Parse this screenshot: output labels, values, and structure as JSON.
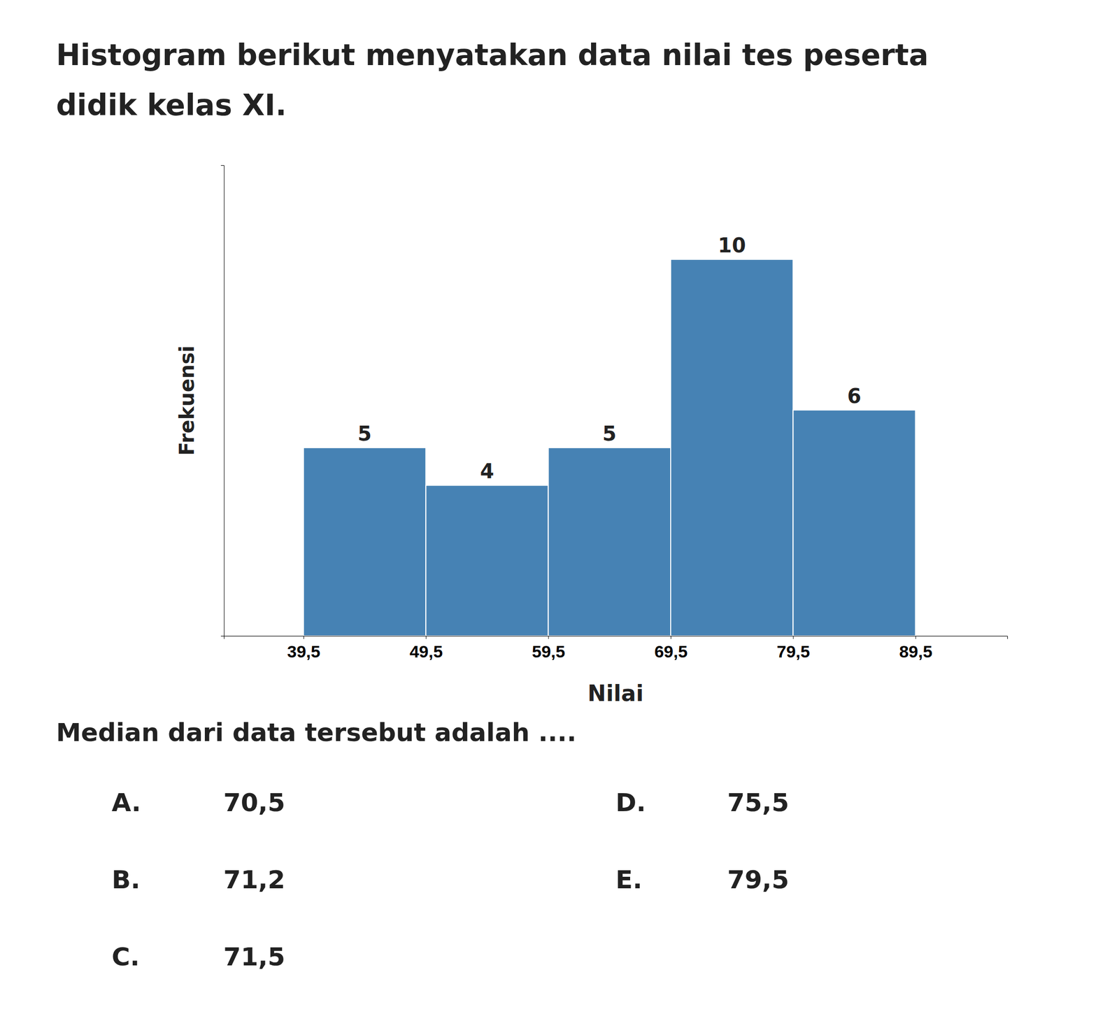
{
  "chart_data": {
    "type": "histogram",
    "title": [
      "Histogram berikut menyatakan data nilai tes peserta",
      "didik kelas XI."
    ],
    "xlabel": "Nilai",
    "ylabel": "Frekuensi",
    "bins": [
      39.5,
      49.5,
      59.5,
      69.5,
      79.5,
      89.5
    ],
    "values": [
      5,
      4,
      5,
      10,
      6
    ],
    "data_labels": true,
    "xlim": [
      33,
      97
    ],
    "ylim": [
      0,
      12.5
    ],
    "xticks": [
      {
        "value": 39.5,
        "label": "39,5"
      },
      {
        "value": 49.5,
        "label": "49,5"
      },
      {
        "value": 59.5,
        "label": "59,5"
      },
      {
        "value": 69.5,
        "label": "69,5"
      },
      {
        "value": 79.5,
        "label": "79,5"
      },
      {
        "value": 89.5,
        "label": "89,5"
      }
    ],
    "tick_labels": "x",
    "grid": false,
    "annotations": [
      "Median dari data tersebut adalah ...."
    ],
    "choices": [
      {
        "label": "A.",
        "value": "70,5"
      },
      {
        "label": "B.",
        "value": "71,2"
      },
      {
        "label": "C.",
        "value": "71,5"
      },
      {
        "label": "D.",
        "value": "75,5"
      },
      {
        "label": "E.",
        "value": "79,5"
      }
    ]
  }
}
